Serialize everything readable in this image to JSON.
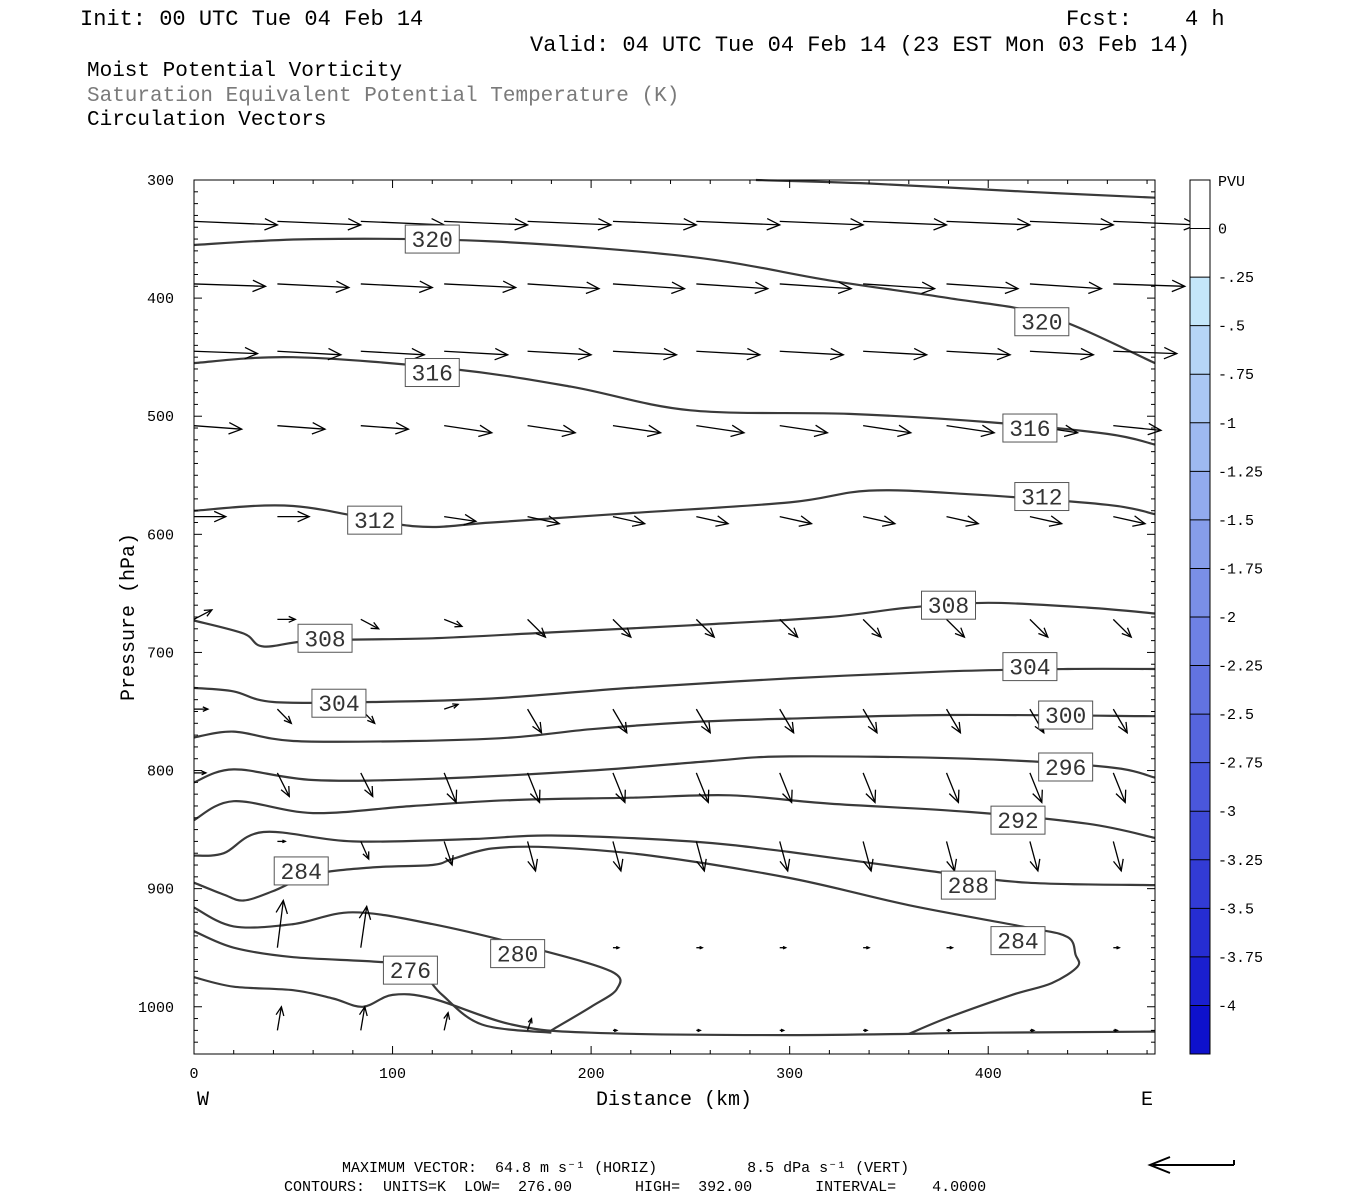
{
  "header": {
    "init": "Init: 00 UTC Tue 04 Feb 14",
    "fcst_label": "Fcst:",
    "fcst_value": "4 h",
    "valid": "Valid: 04 UTC Tue 04 Feb 14 (23 EST Mon 03 Feb 14)",
    "line1": "Moist Potential Vorticity",
    "line2": "Saturation Equivalent Potential Temperature (K)",
    "line3": "Circulation Vectors"
  },
  "footer": {
    "max_vector": "MAXIMUM VECTOR:  64.8 m s⁻¹ (HORIZ)          8.5 dPa s⁻¹ (VERT)",
    "contours": "CONTOURS:  UNITS=K  LOW=  276.00       HIGH=  392.00       INTERVAL=    4.0000"
  },
  "colors": {
    "contour": "#3a3a3a",
    "vector": "#000000",
    "colorbar_ramp": [
      "#ffffff",
      "#ffffff",
      "#c4e6fa",
      "#b6d5f7",
      "#aac7f4",
      "#9eb9f1",
      "#92abee",
      "#869dea",
      "#7a8fe7",
      "#6e81e4",
      "#6273e1",
      "#5665de",
      "#4a57db",
      "#3e49d8",
      "#323bd5",
      "#262dd2",
      "#1a1fcf",
      "#0e11cc"
    ]
  },
  "chart_data": {
    "type": "cross-section",
    "xlabel": "Distance (km)",
    "ylabel": "Pressure (hPa)",
    "x_left_label": "W",
    "x_right_label": "E",
    "xlim": [
      0,
      484
    ],
    "ylim": [
      1040,
      300
    ],
    "xticks": [
      0,
      100,
      200,
      300,
      400
    ],
    "yticks": [
      300,
      400,
      500,
      600,
      700,
      800,
      900,
      1000
    ],
    "colorbar": {
      "title": "PVU",
      "ticks": [
        "0",
        "-.25",
        "-.5",
        "-.75",
        "-1",
        "-1.25",
        "-1.5",
        "-1.75",
        "-2",
        "-2.25",
        "-2.5",
        "-2.75",
        "-3",
        "-3.25",
        "-3.5",
        "-3.75",
        "-4"
      ]
    },
    "contours": [
      {
        "value": 320,
        "points": [
          [
            0,
            355
          ],
          [
            60,
            350
          ],
          [
            150,
            352
          ],
          [
            250,
            365
          ],
          [
            320,
            385
          ],
          [
            380,
            400
          ],
          [
            430,
            415
          ],
          [
            484,
            455
          ]
        ]
      },
      {
        "value": 316,
        "points": [
          [
            0,
            455
          ],
          [
            50,
            450
          ],
          [
            130,
            460
          ],
          [
            190,
            475
          ],
          [
            250,
            495
          ],
          [
            330,
            498
          ],
          [
            400,
            505
          ],
          [
            460,
            515
          ],
          [
            484,
            524
          ]
        ]
      },
      {
        "value": 312,
        "points": [
          [
            0,
            580
          ],
          [
            50,
            576
          ],
          [
            110,
            593
          ],
          [
            150,
            590
          ],
          [
            220,
            582
          ],
          [
            300,
            573
          ],
          [
            340,
            563
          ],
          [
            390,
            566
          ],
          [
            460,
            575
          ],
          [
            484,
            583
          ]
        ]
      },
      {
        "value": 308,
        "points": [
          [
            0,
            673
          ],
          [
            25,
            684
          ],
          [
            35,
            695
          ],
          [
            60,
            690
          ],
          [
            120,
            688
          ],
          [
            180,
            683
          ],
          [
            250,
            677
          ],
          [
            320,
            670
          ],
          [
            360,
            662
          ],
          [
            400,
            658
          ],
          [
            450,
            662
          ],
          [
            484,
            667
          ]
        ]
      },
      {
        "value": 304,
        "points": [
          [
            0,
            730
          ],
          [
            20,
            733
          ],
          [
            40,
            742
          ],
          [
            90,
            742
          ],
          [
            150,
            739
          ],
          [
            220,
            730
          ],
          [
            300,
            722
          ],
          [
            380,
            716
          ],
          [
            440,
            714
          ],
          [
            484,
            714
          ]
        ]
      },
      {
        "value": 300,
        "points": [
          [
            0,
            772
          ],
          [
            20,
            767
          ],
          [
            50,
            775
          ],
          [
            110,
            775
          ],
          [
            160,
            772
          ],
          [
            200,
            765
          ],
          [
            250,
            759
          ],
          [
            300,
            756
          ],
          [
            380,
            753
          ],
          [
            484,
            754
          ]
        ]
      },
      {
        "value": 296,
        "points": [
          [
            0,
            810
          ],
          [
            20,
            799
          ],
          [
            60,
            808
          ],
          [
            120,
            807
          ],
          [
            200,
            800
          ],
          [
            260,
            792
          ],
          [
            300,
            788
          ],
          [
            390,
            790
          ],
          [
            460,
            797
          ],
          [
            484,
            806
          ]
        ]
      },
      {
        "value": 292,
        "points": [
          [
            0,
            842
          ],
          [
            20,
            826
          ],
          [
            60,
            836
          ],
          [
            110,
            830
          ],
          [
            160,
            825
          ],
          [
            220,
            823
          ],
          [
            270,
            821
          ],
          [
            320,
            828
          ],
          [
            390,
            835
          ],
          [
            450,
            845
          ],
          [
            484,
            857
          ]
        ]
      },
      {
        "value": 288,
        "points": [
          [
            0,
            872
          ],
          [
            15,
            870
          ],
          [
            35,
            852
          ],
          [
            80,
            860
          ],
          [
            140,
            858
          ],
          [
            180,
            855
          ],
          [
            250,
            860
          ],
          [
            300,
            869
          ],
          [
            370,
            885
          ],
          [
            420,
            895
          ],
          [
            484,
            897
          ]
        ]
      },
      {
        "value": 284,
        "points": [
          [
            0,
            895
          ],
          [
            15,
            905
          ],
          [
            25,
            910
          ],
          [
            40,
            902
          ],
          [
            60,
            888
          ],
          [
            90,
            882
          ],
          [
            120,
            880
          ],
          [
            130,
            875
          ],
          [
            150,
            866
          ],
          [
            180,
            865
          ],
          [
            230,
            872
          ],
          [
            300,
            891
          ],
          [
            360,
            914
          ],
          [
            420,
            933
          ],
          [
            440,
            941
          ],
          [
            444,
            956
          ],
          [
            445,
            966
          ],
          [
            432,
            980
          ],
          [
            412,
            990
          ],
          [
            380,
            1009
          ],
          [
            360,
            1023
          ]
        ]
      },
      {
        "value": 280,
        "points": [
          [
            0,
            916
          ],
          [
            20,
            932
          ],
          [
            50,
            930
          ],
          [
            80,
            920
          ],
          [
            120,
            930
          ],
          [
            170,
            950
          ],
          [
            210,
            970
          ],
          [
            213,
            985
          ],
          [
            200,
            1000
          ],
          [
            180,
            1020
          ]
        ]
      },
      {
        "value": 276,
        "points": [
          [
            0,
            936
          ],
          [
            20,
            950
          ],
          [
            50,
            958
          ],
          [
            100,
            963
          ],
          [
            115,
            972
          ],
          [
            125,
            990
          ],
          [
            145,
            1015
          ],
          [
            180,
            1022
          ]
        ]
      },
      {
        "value": null,
        "points": [
          [
            0,
            975
          ],
          [
            20,
            983
          ],
          [
            50,
            986
          ],
          [
            70,
            993
          ],
          [
            85,
            1000
          ],
          [
            100,
            990
          ],
          [
            120,
            993
          ],
          [
            160,
            1015
          ],
          [
            200,
            1022
          ],
          [
            300,
            1024
          ],
          [
            400,
            1022
          ],
          [
            484,
            1021
          ]
        ]
      },
      {
        "value": null,
        "points": [
          [
            283,
            300
          ],
          [
            340,
            303
          ],
          [
            420,
            310
          ],
          [
            484,
            315
          ]
        ]
      }
    ],
    "contour_labels": [
      {
        "value": "320",
        "x": 120,
        "p": 350
      },
      {
        "value": "320",
        "x": 427,
        "p": 420
      },
      {
        "value": "316",
        "x": 120,
        "p": 463
      },
      {
        "value": "316",
        "x": 421,
        "p": 510
      },
      {
        "value": "312",
        "x": 91,
        "p": 588
      },
      {
        "value": "312",
        "x": 427,
        "p": 568
      },
      {
        "value": "308",
        "x": 66,
        "p": 688
      },
      {
        "value": "308",
        "x": 380,
        "p": 660
      },
      {
        "value": "304",
        "x": 73,
        "p": 743
      },
      {
        "value": "304",
        "x": 421,
        "p": 712
      },
      {
        "value": "300",
        "x": 439,
        "p": 753
      },
      {
        "value": "296",
        "x": 439,
        "p": 797
      },
      {
        "value": "292",
        "x": 415,
        "p": 842
      },
      {
        "value": "288",
        "x": 390,
        "p": 897
      },
      {
        "value": "284",
        "x": 54,
        "p": 885
      },
      {
        "value": "284",
        "x": 415,
        "p": 944
      },
      {
        "value": "280",
        "x": 163,
        "p": 955
      },
      {
        "value": "276",
        "x": 109,
        "p": 969
      }
    ],
    "vector_rows": [
      {
        "p": 335,
        "len": 42,
        "xs": [
          0,
          42,
          84,
          126,
          168,
          211,
          253,
          295,
          337,
          379,
          421,
          463
        ],
        "dp": [
          3,
          3,
          3,
          3,
          3,
          3,
          3,
          3,
          3,
          3,
          3,
          3
        ]
      },
      {
        "p": 388,
        "len": 36,
        "xs": [
          0,
          42,
          84,
          126,
          168,
          211,
          253,
          295,
          337,
          379,
          421,
          463
        ],
        "dp": [
          2,
          3,
          3,
          3,
          4,
          4,
          4,
          4,
          4,
          4,
          4,
          2
        ]
      },
      {
        "p": 445,
        "len": 32,
        "xs": [
          0,
          42,
          84,
          126,
          168,
          211,
          253,
          295,
          337,
          379,
          421,
          463
        ],
        "dp": [
          2,
          3,
          3,
          3,
          3,
          3,
          3,
          3,
          3,
          3,
          3,
          2
        ]
      },
      {
        "p": 508,
        "len": 24,
        "xs": [
          0,
          42,
          84,
          126,
          168,
          211,
          253,
          295,
          337,
          379,
          421,
          463
        ],
        "dp": [
          3,
          3,
          3,
          6,
          6,
          6,
          6,
          6,
          6,
          6,
          6,
          4
        ]
      },
      {
        "p": 585,
        "len": 16,
        "xs": [
          0,
          42,
          84,
          126,
          168,
          211,
          253,
          295,
          337,
          379,
          421,
          463
        ],
        "dp": [
          0,
          0,
          0,
          4,
          6,
          6,
          6,
          6,
          6,
          6,
          6,
          6
        ]
      },
      {
        "p": 672,
        "len": 9,
        "xs": [
          0,
          42,
          84,
          126,
          168,
          211,
          253,
          295,
          337,
          379,
          421,
          463
        ],
        "dp": [
          -8,
          0,
          8,
          6,
          15,
          15,
          15,
          15,
          15,
          15,
          15,
          15
        ]
      },
      {
        "p": 748,
        "len": 7,
        "xs": [
          0,
          42,
          84,
          126,
          168,
          211,
          253,
          295,
          337,
          379,
          421,
          463
        ],
        "dp": [
          0,
          12,
          12,
          -4,
          20,
          20,
          20,
          20,
          20,
          20,
          20,
          20
        ]
      },
      {
        "p": 802,
        "len": 6,
        "xs": [
          0,
          42,
          84,
          126,
          168,
          211,
          253,
          295,
          337,
          379,
          421,
          463
        ],
        "dp": [
          0,
          20,
          20,
          25,
          25,
          25,
          25,
          25,
          25,
          25,
          25,
          25
        ]
      },
      {
        "p": 860,
        "len": 4,
        "xs": [
          42,
          84,
          126,
          168,
          211,
          253,
          295,
          337,
          379,
          421,
          463
        ],
        "dp": [
          0,
          15,
          20,
          25,
          25,
          25,
          25,
          25,
          25,
          25,
          25
        ]
      },
      {
        "p": 950,
        "len": 3,
        "xs": [
          42,
          84,
          211,
          253,
          295,
          337,
          379,
          421,
          463
        ],
        "dp": [
          -40,
          -35,
          0,
          0,
          0,
          0,
          0,
          0,
          0
        ]
      },
      {
        "p": 1020,
        "len": 2,
        "xs": [
          42,
          84,
          126,
          168,
          211,
          253,
          295,
          337,
          379,
          421,
          463
        ],
        "dp": [
          -20,
          -20,
          -15,
          -10,
          0,
          0,
          0,
          0,
          0,
          0,
          0
        ]
      }
    ]
  }
}
